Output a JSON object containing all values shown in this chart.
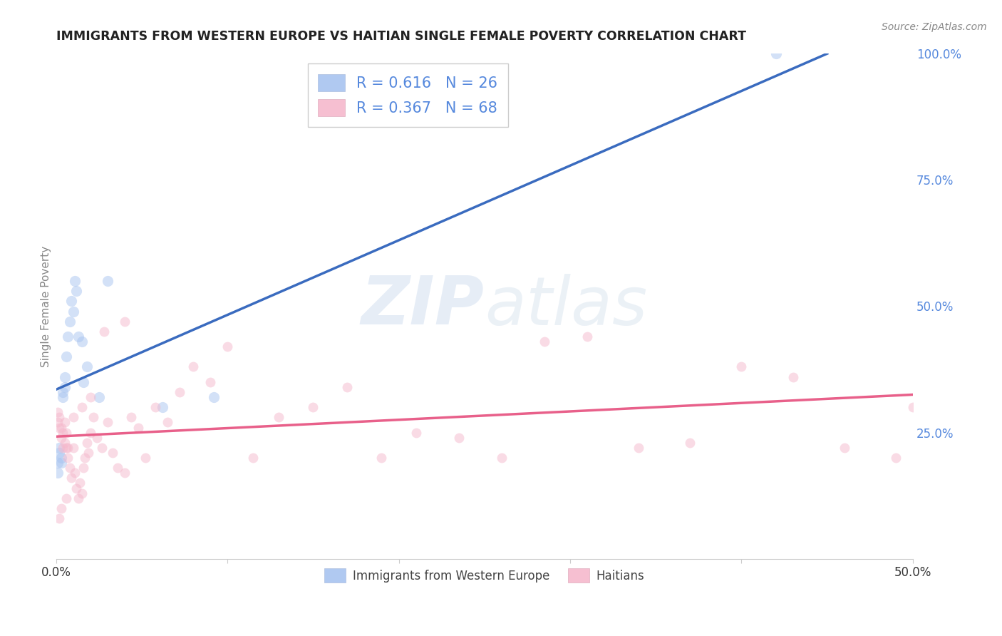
{
  "title": "IMMIGRANTS FROM WESTERN EUROPE VS HAITIAN SINGLE FEMALE POVERTY CORRELATION CHART",
  "source": "Source: ZipAtlas.com",
  "ylabel": "Single Female Poverty",
  "xlim": [
    0,
    0.5
  ],
  "ylim": [
    0,
    1.0
  ],
  "blue_color": "#a8c4f0",
  "pink_color": "#f5b8cc",
  "blue_line_color": "#3a6bbf",
  "pink_line_color": "#e8608a",
  "legend_blue_R": "R = 0.616",
  "legend_blue_N": "N = 26",
  "legend_pink_R": "R = 0.367",
  "legend_pink_N": "N = 68",
  "legend_label_blue": "Immigrants from Western Europe",
  "legend_label_pink": "Haitians",
  "watermark_zip": "ZIP",
  "watermark_atlas": "atlas",
  "blue_scatter_x": [
    0.001,
    0.001,
    0.002,
    0.002,
    0.003,
    0.003,
    0.004,
    0.004,
    0.005,
    0.005,
    0.006,
    0.007,
    0.008,
    0.009,
    0.01,
    0.011,
    0.012,
    0.013,
    0.015,
    0.016,
    0.018,
    0.025,
    0.03,
    0.062,
    0.092,
    0.42
  ],
  "blue_scatter_y": [
    0.19,
    0.17,
    0.22,
    0.21,
    0.19,
    0.2,
    0.32,
    0.33,
    0.36,
    0.34,
    0.4,
    0.44,
    0.47,
    0.51,
    0.49,
    0.55,
    0.53,
    0.44,
    0.43,
    0.35,
    0.38,
    0.32,
    0.55,
    0.3,
    0.32,
    1.0
  ],
  "pink_scatter_x": [
    0.001,
    0.001,
    0.002,
    0.002,
    0.003,
    0.003,
    0.004,
    0.004,
    0.005,
    0.005,
    0.006,
    0.006,
    0.007,
    0.007,
    0.008,
    0.009,
    0.01,
    0.011,
    0.012,
    0.013,
    0.014,
    0.015,
    0.016,
    0.017,
    0.018,
    0.019,
    0.02,
    0.022,
    0.024,
    0.027,
    0.03,
    0.033,
    0.036,
    0.04,
    0.044,
    0.048,
    0.052,
    0.058,
    0.065,
    0.072,
    0.08,
    0.09,
    0.1,
    0.115,
    0.13,
    0.15,
    0.17,
    0.19,
    0.21,
    0.235,
    0.26,
    0.285,
    0.31,
    0.34,
    0.37,
    0.4,
    0.43,
    0.46,
    0.49,
    0.5,
    0.002,
    0.003,
    0.006,
    0.01,
    0.015,
    0.02,
    0.028,
    0.04
  ],
  "pink_scatter_y": [
    0.27,
    0.29,
    0.26,
    0.28,
    0.24,
    0.26,
    0.22,
    0.25,
    0.23,
    0.27,
    0.22,
    0.25,
    0.2,
    0.22,
    0.18,
    0.16,
    0.22,
    0.17,
    0.14,
    0.12,
    0.15,
    0.13,
    0.18,
    0.2,
    0.23,
    0.21,
    0.25,
    0.28,
    0.24,
    0.22,
    0.27,
    0.21,
    0.18,
    0.17,
    0.28,
    0.26,
    0.2,
    0.3,
    0.27,
    0.33,
    0.38,
    0.35,
    0.42,
    0.2,
    0.28,
    0.3,
    0.34,
    0.2,
    0.25,
    0.24,
    0.2,
    0.43,
    0.44,
    0.22,
    0.23,
    0.38,
    0.36,
    0.22,
    0.2,
    0.3,
    0.08,
    0.1,
    0.12,
    0.28,
    0.3,
    0.32,
    0.45,
    0.47
  ],
  "blue_line_x": [
    0.0,
    0.45
  ],
  "blue_line_y": [
    0.335,
    1.0
  ],
  "pink_line_x": [
    0.0,
    0.5
  ],
  "pink_line_y": [
    0.242,
    0.325
  ],
  "background_color": "#ffffff",
  "grid_color": "#d8dde6",
  "title_color": "#222222",
  "axis_label_color": "#888888",
  "right_tick_color": "#5588dd",
  "dot_size_blue": 120,
  "dot_size_pink": 100,
  "dot_alpha": 0.5
}
